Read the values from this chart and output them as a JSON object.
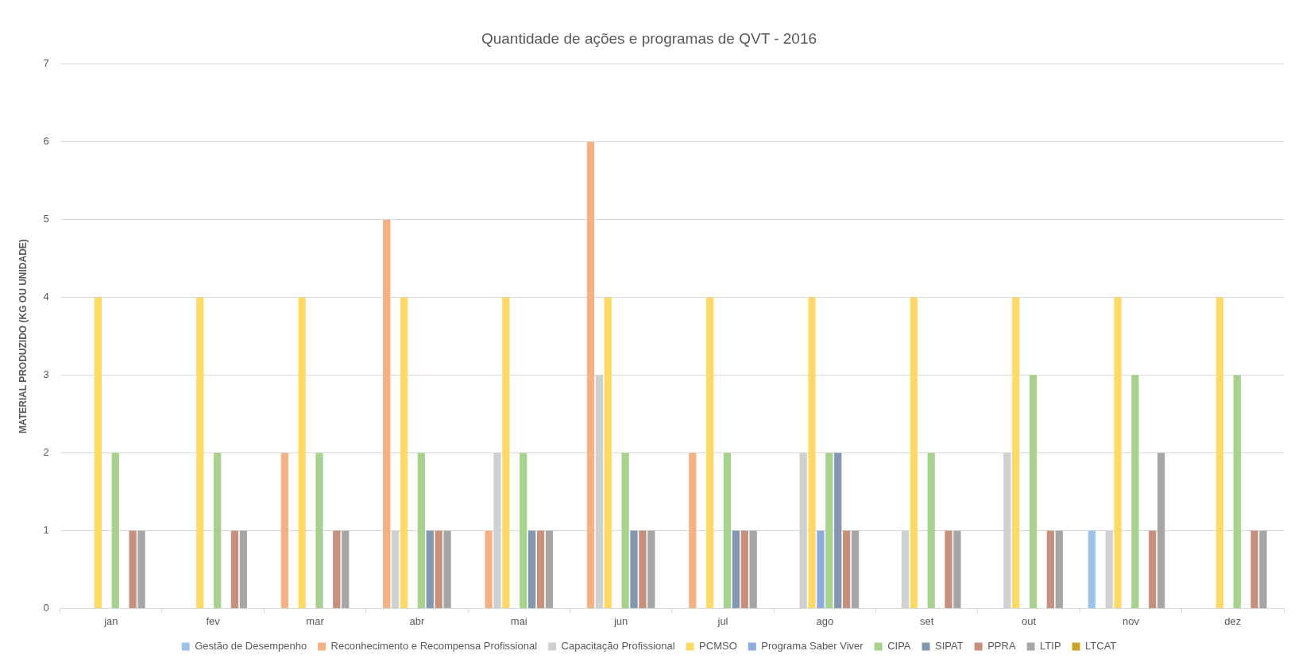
{
  "chart_data": {
    "type": "bar",
    "title": "Quantidade de ações e programas de QVT - 2016",
    "ylabel": "MATERIAL PRODUZIDO (KG OU UNIDADE)",
    "categories": [
      "jan",
      "fev",
      "mar",
      "abr",
      "mai",
      "jun",
      "jul",
      "ago",
      "set",
      "out",
      "nov",
      "dez"
    ],
    "ylim": [
      0,
      7
    ],
    "yticks": [
      0,
      1,
      2,
      3,
      4,
      5,
      6,
      7
    ],
    "grid": "y",
    "legend": "bottom",
    "series": [
      {
        "name": "Gestão de Desempenho",
        "color": "#9dc3e6",
        "values": [
          null,
          null,
          null,
          null,
          null,
          null,
          null,
          null,
          null,
          null,
          1,
          null
        ]
      },
      {
        "name": "Reconhecimento e Recompensa Profissional",
        "color": "#f4b183",
        "values": [
          null,
          null,
          2,
          5,
          1,
          6,
          2,
          null,
          null,
          null,
          null,
          null
        ]
      },
      {
        "name": "Capacitação Profissional",
        "color": "#d0d0d0",
        "values": [
          null,
          null,
          null,
          1,
          2,
          3,
          null,
          2,
          1,
          2,
          1,
          null
        ]
      },
      {
        "name": "PCMSO",
        "color": "#ffd966",
        "values": [
          4,
          4,
          4,
          4,
          4,
          4,
          4,
          4,
          4,
          4,
          4,
          4
        ]
      },
      {
        "name": "Programa Saber Viver",
        "color": "#8faadc",
        "values": [
          null,
          null,
          null,
          null,
          null,
          null,
          null,
          1,
          null,
          null,
          null,
          null
        ]
      },
      {
        "name": "CIPA",
        "color": "#a9d18e",
        "values": [
          2,
          2,
          2,
          2,
          2,
          2,
          2,
          2,
          2,
          3,
          3,
          3
        ]
      },
      {
        "name": "SIPAT",
        "color": "#8497b0",
        "values": [
          null,
          null,
          null,
          1,
          1,
          1,
          1,
          2,
          null,
          null,
          null,
          null
        ]
      },
      {
        "name": "PPRA",
        "color": "#c5907c",
        "values": [
          1,
          1,
          1,
          1,
          1,
          1,
          1,
          1,
          1,
          1,
          1,
          1
        ]
      },
      {
        "name": "LTIP",
        "color": "#a6a6a6",
        "values": [
          1,
          1,
          1,
          1,
          1,
          1,
          1,
          1,
          1,
          1,
          2,
          1
        ]
      },
      {
        "name": "LTCAT",
        "color": "#c9a227",
        "values": [
          null,
          null,
          null,
          null,
          null,
          null,
          null,
          null,
          null,
          null,
          null,
          null
        ]
      }
    ]
  }
}
